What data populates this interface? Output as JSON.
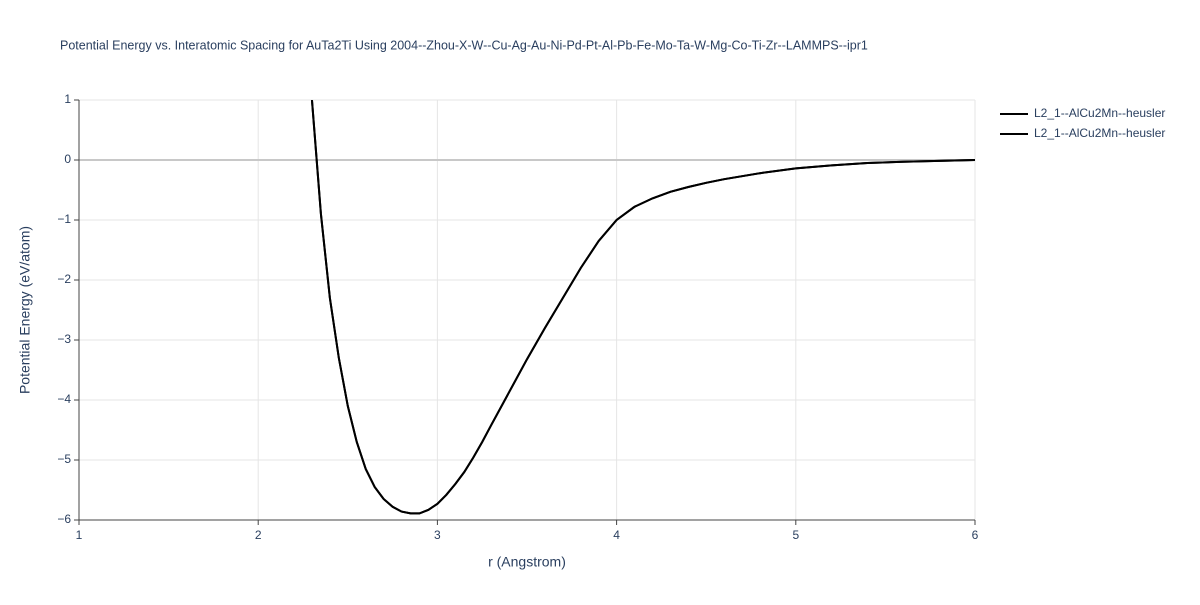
{
  "chart_data": {
    "type": "line",
    "title": "Potential Energy vs. Interatomic Spacing for AuTa2Ti Using 2004--Zhou-X-W--Cu-Ag-Au-Ni-Pd-Pt-Al-Pb-Fe-Mo-Ta-W-Mg-Co-Ti-Zr--LAMMPS--ipr1",
    "x_label": "r (Angstrom)",
    "y_label": "Potential Energy (eV/atom)",
    "x": [
      2.3,
      2.35,
      2.4,
      2.45,
      2.5,
      2.55,
      2.6,
      2.65,
      2.7,
      2.75,
      2.8,
      2.85,
      2.9,
      2.95,
      3.0,
      3.05,
      3.1,
      3.15,
      3.2,
      3.25,
      3.3,
      3.4,
      3.5,
      3.6,
      3.7,
      3.8,
      3.9,
      4.0,
      4.1,
      4.2,
      4.3,
      4.4,
      4.5,
      4.6,
      4.8,
      5.0,
      5.2,
      5.4,
      5.6,
      5.8,
      6.0
    ],
    "series": [
      {
        "name": "L2_1--AlCu2Mn--heusler",
        "color": "#000000",
        "values": [
          1.0,
          -0.9,
          -2.3,
          -3.3,
          -4.1,
          -4.7,
          -5.15,
          -5.45,
          -5.65,
          -5.78,
          -5.86,
          -5.89,
          -5.89,
          -5.83,
          -5.73,
          -5.58,
          -5.4,
          -5.2,
          -4.96,
          -4.7,
          -4.42,
          -3.87,
          -3.32,
          -2.8,
          -2.3,
          -1.8,
          -1.35,
          -1.0,
          -0.78,
          -0.64,
          -0.53,
          -0.45,
          -0.38,
          -0.32,
          -0.22,
          -0.14,
          -0.09,
          -0.05,
          -0.03,
          -0.015,
          0
        ]
      },
      {
        "name": "L2_1--AlCu2Mn--heusler",
        "color": "#000000",
        "values": [
          1.0,
          -0.9,
          -2.3,
          -3.3,
          -4.1,
          -4.7,
          -5.15,
          -5.45,
          -5.65,
          -5.78,
          -5.86,
          -5.89,
          -5.89,
          -5.83,
          -5.73,
          -5.58,
          -5.4,
          -5.2,
          -4.96,
          -4.7,
          -4.42,
          -3.87,
          -3.32,
          -2.8,
          -2.3,
          -1.8,
          -1.35,
          -1.0,
          -0.78,
          -0.64,
          -0.53,
          -0.45,
          -0.38,
          -0.32,
          -0.22,
          -0.14,
          -0.09,
          -0.05,
          -0.03,
          -0.015,
          0
        ]
      }
    ],
    "xlim": [
      1,
      6
    ],
    "xticks": [
      1,
      2,
      3,
      4,
      5,
      6
    ],
    "ylim": [
      -6,
      1
    ],
    "yticks": [
      {
        "value": -6,
        "label": "−6"
      },
      {
        "value": -5,
        "label": "−5"
      },
      {
        "value": -4,
        "label": "−4"
      },
      {
        "value": -3,
        "label": "−3"
      },
      {
        "value": -2,
        "label": "−2"
      },
      {
        "value": -1,
        "label": "−1"
      },
      0,
      1
    ],
    "grid": true,
    "legend": "top-right"
  }
}
